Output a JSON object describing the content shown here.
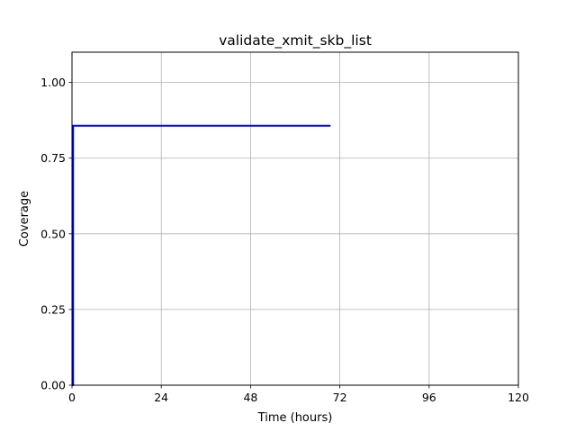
{
  "chart_data": {
    "type": "line",
    "title": "validate_xmit_skb_list",
    "xlabel": "Time (hours)",
    "ylabel": "Coverage",
    "xlim": [
      0,
      120
    ],
    "ylim": [
      0,
      1.1
    ],
    "xticks": [
      0,
      24,
      48,
      72,
      96,
      120
    ],
    "yticks": [
      0.0,
      0.25,
      0.5,
      0.75,
      1.0
    ],
    "xtick_labels": [
      "0",
      "24",
      "48",
      "72",
      "96",
      "120"
    ],
    "ytick_labels": [
      "0.00",
      "0.25",
      "0.50",
      "0.75",
      "1.00"
    ],
    "grid": true,
    "series": [
      {
        "color": "#0000ff",
        "step": true,
        "x": [
          0,
          0.3,
          0.3,
          69.5
        ],
        "y": [
          0,
          0,
          0.857,
          0.857
        ]
      }
    ]
  }
}
